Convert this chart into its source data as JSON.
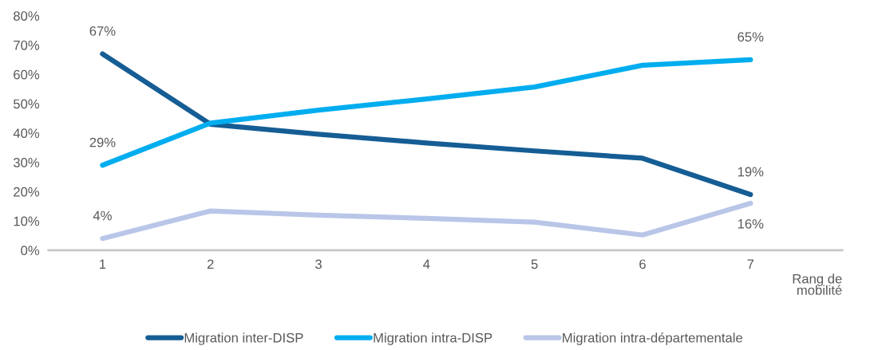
{
  "chart_data": {
    "type": "line",
    "xlabel": "Rang de\nmobilité",
    "categories": [
      "1",
      "2",
      "3",
      "4",
      "5",
      "6",
      "7"
    ],
    "series": [
      {
        "name": "Migration inter-DISP",
        "color": "#155d94",
        "values": [
          67,
          43,
          39.6,
          36.6,
          33.9,
          31.4,
          19
        ],
        "value_labels": [
          "67%",
          null,
          null,
          null,
          null,
          null,
          "19%"
        ]
      },
      {
        "name": "Migration intra-DISP",
        "color": "#00adef",
        "values": [
          29,
          43.4,
          47.8,
          51.6,
          55.7,
          63.1,
          65
        ],
        "value_labels": [
          "29%",
          null,
          null,
          null,
          null,
          null,
          "65%"
        ]
      },
      {
        "name": "Migration intra-départementale",
        "color": "#b9c6e8",
        "values": [
          4,
          13.4,
          12,
          10.9,
          9.6,
          5.2,
          16
        ],
        "value_labels": [
          "4%",
          null,
          null,
          null,
          null,
          null,
          "16%"
        ]
      }
    ],
    "ylim": [
      0,
      80
    ],
    "yticks": [
      {
        "value": 0,
        "label": "0%"
      },
      {
        "value": 10,
        "label": "10%"
      },
      {
        "value": 20,
        "label": "20%"
      },
      {
        "value": 30,
        "label": "30%"
      },
      {
        "value": 40,
        "label": "40%"
      },
      {
        "value": 50,
        "label": "50%"
      },
      {
        "value": 60,
        "label": "60%"
      },
      {
        "value": 70,
        "label": "70%"
      },
      {
        "value": 80,
        "label": "80%"
      }
    ],
    "grid": false,
    "legend": "bottom",
    "marker": "none",
    "line_style": "solid"
  }
}
